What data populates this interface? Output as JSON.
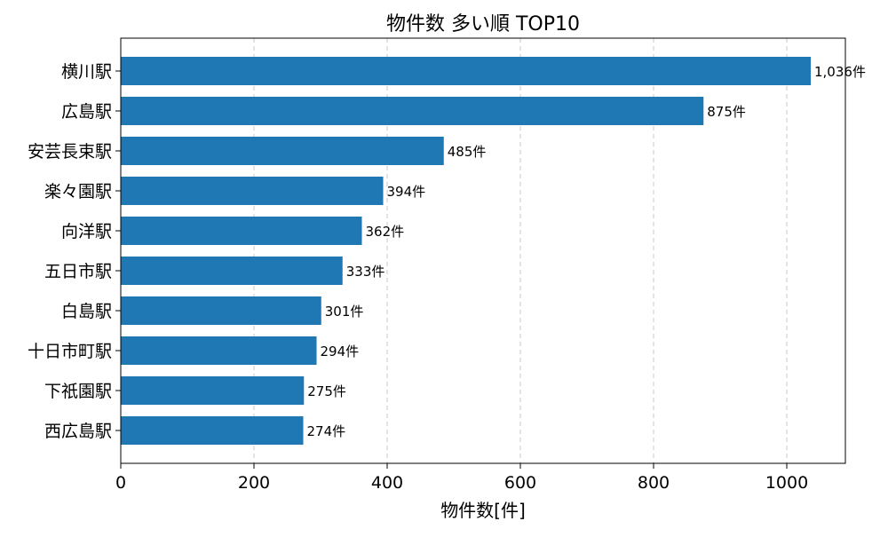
{
  "chart_data": {
    "type": "bar",
    "orientation": "horizontal",
    "title": "物件数 多い順 TOP10",
    "xlabel": "物件数[件]",
    "ylabel": "",
    "xlim": [
      0,
      1088
    ],
    "xticks": [
      0,
      200,
      400,
      600,
      800,
      1000
    ],
    "grid": "x-dashed",
    "color": "#1f77b4",
    "categories": [
      "横川駅",
      "広島駅",
      "安芸長束駅",
      "楽々園駅",
      "向洋駅",
      "五日市駅",
      "白島駅",
      "十日市町駅",
      "下祇園駅",
      "西広島駅"
    ],
    "values": [
      1036,
      875,
      485,
      394,
      362,
      333,
      301,
      294,
      275,
      274
    ],
    "value_labels": [
      "1,036件",
      "875件",
      "485件",
      "394件",
      "362件",
      "333件",
      "301件",
      "294件",
      "275件",
      "274件"
    ]
  }
}
